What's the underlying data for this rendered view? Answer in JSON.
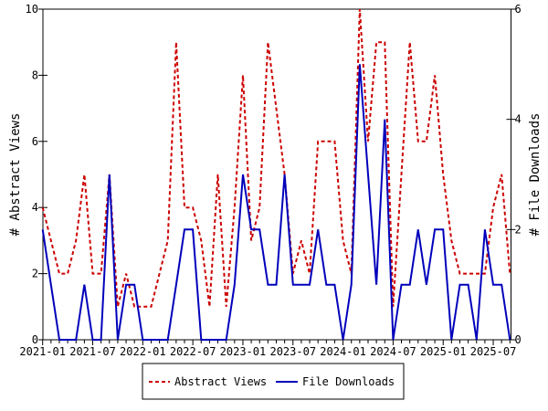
{
  "chart_data": {
    "type": "line",
    "title": "",
    "xlabel": "",
    "ylabel": "# Abstract Views",
    "y2label": "# File Downloads",
    "ylim": [
      0,
      10
    ],
    "y2lim": [
      0,
      6
    ],
    "yticks": [
      "0",
      "2",
      "4",
      "6",
      "8",
      "10"
    ],
    "y2ticks": [
      "0",
      "2",
      "4",
      "6"
    ],
    "xticks": [
      "2021-01",
      "2021-07",
      "2022-01",
      "2022-07",
      "2023-01",
      "2023-07",
      "2024-01",
      "2024-07",
      "2025-01",
      "2025-07"
    ],
    "x_start": "2021-01",
    "x_end": "2025-09",
    "legend_position": "bottom",
    "series": [
      {
        "name": "Abstract Views",
        "axis": "left",
        "color": "#cc0000",
        "style": "dashed",
        "values": [
          4,
          3,
          2,
          2,
          3,
          5,
          2,
          2,
          5,
          1,
          2,
          1,
          1,
          1,
          2,
          3,
          9,
          4,
          4,
          3,
          1,
          5,
          1,
          4,
          8,
          3,
          4,
          9,
          7,
          5,
          2,
          3,
          2,
          6,
          6,
          6,
          3,
          2,
          10,
          6,
          9,
          9,
          1,
          5,
          9,
          6,
          6,
          8,
          5,
          3,
          2,
          2,
          2,
          2,
          4,
          5,
          2
        ]
      },
      {
        "name": "File Downloads",
        "axis": "right",
        "color": "#0000bb",
        "style": "solid",
        "values": [
          2,
          1,
          0,
          0,
          0,
          1,
          0,
          0,
          3,
          0,
          1,
          1,
          0,
          0,
          0,
          0,
          1,
          2,
          2,
          0,
          0,
          0,
          0,
          1,
          3,
          2,
          2,
          1,
          1,
          3,
          1,
          1,
          1,
          2,
          1,
          1,
          0,
          1,
          5,
          3,
          1,
          4,
          0,
          1,
          1,
          2,
          1,
          2,
          2,
          0,
          1,
          1,
          0,
          2,
          1,
          1,
          0
        ]
      }
    ]
  }
}
